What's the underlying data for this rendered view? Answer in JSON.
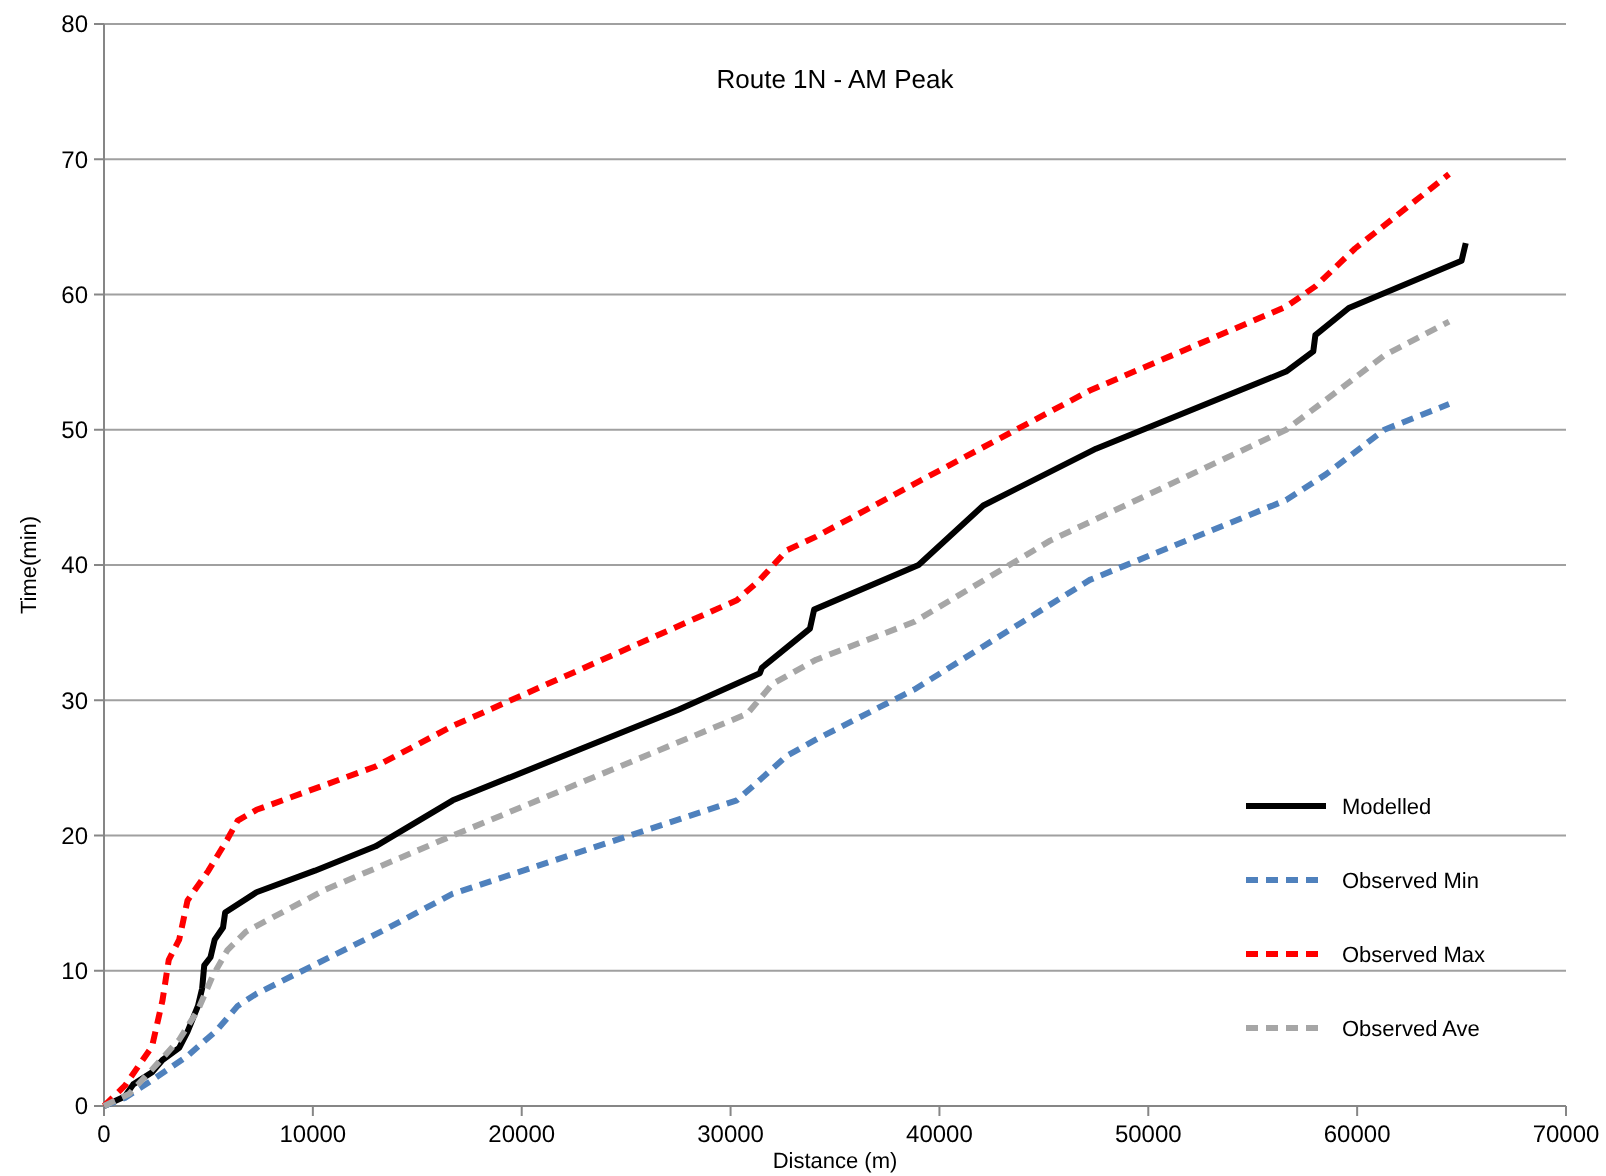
{
  "chart_data": {
    "type": "line",
    "title": "Route 1N - AM Peak",
    "xlabel": "Distance (m)",
    "ylabel": "Time(min)",
    "xlim": [
      0,
      70000
    ],
    "ylim": [
      0,
      80
    ],
    "xticks": [
      0,
      10000,
      20000,
      30000,
      40000,
      50000,
      60000,
      70000
    ],
    "yticks": [
      0,
      10,
      20,
      30,
      40,
      50,
      60,
      70,
      80
    ],
    "grid": "y",
    "legend": "bottom right",
    "marker": "none",
    "series": [
      {
        "name": "Modelled",
        "color": "#000000",
        "line_style": "solid",
        "x": [
          0,
          1000,
          1400,
          2300,
          2800,
          3600,
          4000,
          4500,
          4700,
          4800,
          5100,
          5300,
          5700,
          5800,
          7300,
          10100,
          13000,
          16700,
          27500,
          31400,
          31500,
          33800,
          34000,
          39000,
          42100,
          47500,
          56600,
          57900,
          58000,
          59600,
          65000,
          65200
        ],
        "values": [
          0,
          0.7,
          1.6,
          2.5,
          3.4,
          4.3,
          5.5,
          7.4,
          8.7,
          10.4,
          11,
          12.3,
          13.2,
          14.3,
          15.8,
          17.4,
          19.2,
          22.6,
          29.3,
          32,
          32.4,
          35.3,
          36.7,
          40,
          44.4,
          48.6,
          54.3,
          55.8,
          57,
          59,
          62.5,
          63.8
        ]
      },
      {
        "name": "Observed Min",
        "color": "#4f81bd",
        "line_style": "dashed",
        "x": [
          0,
          1000,
          2300,
          4000,
          5400,
          6400,
          7300,
          13400,
          16700,
          30300,
          31400,
          32700,
          34100,
          38800,
          47200,
          56600,
          58500,
          61300,
          64400
        ],
        "values": [
          0,
          0.6,
          1.9,
          3.7,
          5.6,
          7.4,
          8.3,
          13,
          15.7,
          22.6,
          24.1,
          25.9,
          27.1,
          30.8,
          38.9,
          44.8,
          46.7,
          50,
          51.9
        ]
      },
      {
        "name": "Observed Max",
        "color": "#ff0000",
        "line_style": "dashed",
        "x": [
          0,
          1000,
          2300,
          2800,
          3100,
          3600,
          4000,
          5000,
          5900,
          6400,
          7300,
          13000,
          16700,
          30300,
          31400,
          32700,
          34100,
          38800,
          47200,
          56600,
          58000,
          59900,
          64400
        ],
        "values": [
          0,
          1.5,
          4.4,
          7.8,
          10.8,
          12.3,
          15.2,
          17.4,
          19.7,
          21.1,
          21.9,
          25.1,
          28.1,
          37.4,
          38.9,
          41.1,
          42.1,
          46,
          52.9,
          59.1,
          60.6,
          63.4,
          68.9
        ]
      },
      {
        "name": "Observed Ave",
        "color": "#a6a6a6",
        "line_style": "dashed",
        "x": [
          0,
          1200,
          2300,
          3600,
          4500,
          5200,
          5900,
          6800,
          10600,
          16700,
          30800,
          32000,
          34100,
          38800,
          45300,
          56600,
          58500,
          61300,
          64400
        ],
        "values": [
          0,
          0.9,
          2.7,
          4.9,
          7.1,
          9.6,
          11.5,
          12.9,
          16,
          20,
          29,
          31.2,
          33,
          35.8,
          41.8,
          50,
          52.2,
          55.5,
          58
        ]
      }
    ]
  }
}
